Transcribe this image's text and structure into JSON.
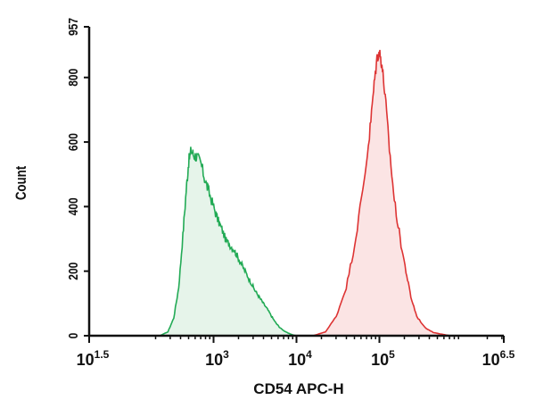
{
  "chart_data": {
    "type": "area",
    "title": "",
    "xlabel": "CD54 APC-H",
    "ylabel": "Count",
    "x_scale": "log10",
    "xlim_log10": [
      1.5,
      6.5
    ],
    "ylim": [
      0,
      957
    ],
    "x_ticks": [
      {
        "base": "10",
        "exp": "1.5",
        "value_log10": 1.5
      },
      {
        "base": "10",
        "exp": "3",
        "value_log10": 3
      },
      {
        "base": "10",
        "exp": "4",
        "value_log10": 4
      },
      {
        "base": "10",
        "exp": "5",
        "value_log10": 5
      },
      {
        "base": "10",
        "exp": "6.5",
        "value_log10": 6.5
      }
    ],
    "y_ticks": [
      "0",
      "200",
      "400",
      "600",
      "800",
      "957"
    ],
    "y_tick_values": [
      0,
      200,
      400,
      600,
      800,
      957
    ],
    "grid": false,
    "legend": "none",
    "series": [
      {
        "color": "#22aa55",
        "fill": "#e6f4ea",
        "points": [
          [
            2.35,
            0
          ],
          [
            2.45,
            12
          ],
          [
            2.52,
            55
          ],
          [
            2.58,
            150
          ],
          [
            2.63,
            310
          ],
          [
            2.67,
            450
          ],
          [
            2.7,
            540
          ],
          [
            2.73,
            575
          ],
          [
            2.76,
            560
          ],
          [
            2.8,
            555
          ],
          [
            2.85,
            530
          ],
          [
            2.9,
            480
          ],
          [
            2.95,
            440
          ],
          [
            3.0,
            400
          ],
          [
            3.05,
            360
          ],
          [
            3.1,
            330
          ],
          [
            3.15,
            295
          ],
          [
            3.2,
            280
          ],
          [
            3.25,
            265
          ],
          [
            3.3,
            240
          ],
          [
            3.35,
            215
          ],
          [
            3.4,
            190
          ],
          [
            3.45,
            165
          ],
          [
            3.5,
            140
          ],
          [
            3.55,
            120
          ],
          [
            3.6,
            100
          ],
          [
            3.65,
            82
          ],
          [
            3.7,
            60
          ],
          [
            3.75,
            40
          ],
          [
            3.8,
            25
          ],
          [
            3.85,
            15
          ],
          [
            3.9,
            8
          ],
          [
            3.95,
            3
          ],
          [
            4.0,
            0
          ]
        ]
      },
      {
        "color": "#dd3333",
        "fill": "#fbe4e4",
        "points": [
          [
            4.2,
            0
          ],
          [
            4.35,
            12
          ],
          [
            4.48,
            60
          ],
          [
            4.6,
            150
          ],
          [
            4.7,
            280
          ],
          [
            4.8,
            450
          ],
          [
            4.88,
            620
          ],
          [
            4.93,
            760
          ],
          [
            4.97,
            860
          ],
          [
            5.0,
            880
          ],
          [
            5.03,
            840
          ],
          [
            5.07,
            740
          ],
          [
            5.12,
            580
          ],
          [
            5.18,
            420
          ],
          [
            5.25,
            300
          ],
          [
            5.32,
            200
          ],
          [
            5.38,
            120
          ],
          [
            5.45,
            60
          ],
          [
            5.55,
            25
          ],
          [
            5.65,
            10
          ],
          [
            5.75,
            5
          ],
          [
            5.85,
            0
          ]
        ]
      }
    ]
  }
}
